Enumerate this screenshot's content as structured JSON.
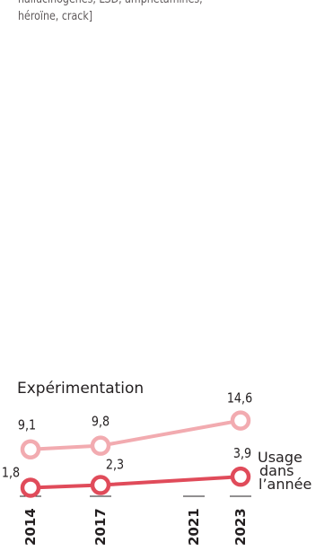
{
  "subtitle_lines": [
    "hallucinogènes, LSD, amphétamines,",
    "héroïne, crack]"
  ],
  "colors": {
    "experimentation": "#f2abb0",
    "usage": "#e04b5a",
    "text": "#231f20",
    "axis": "#231f20"
  },
  "chart_data": {
    "type": "line",
    "x": [
      "2014",
      "2017",
      "2021",
      "2023"
    ],
    "series": [
      {
        "name": "Expérimentation",
        "values": [
          9.1,
          9.8,
          null,
          14.6
        ],
        "labels": [
          "9,1",
          "9,8",
          "",
          "14,6"
        ]
      },
      {
        "name": "Usage dans l'année",
        "values": [
          1.8,
          2.3,
          null,
          3.9
        ],
        "labels": [
          "1,8",
          "2,3",
          "",
          "3,9"
        ]
      }
    ],
    "legend": {
      "experimentation": "Expérimentation",
      "usage_lines": [
        "Usage",
        "dans",
        "l’année"
      ]
    },
    "ylim": [
      0,
      16
    ],
    "grid": false
  }
}
